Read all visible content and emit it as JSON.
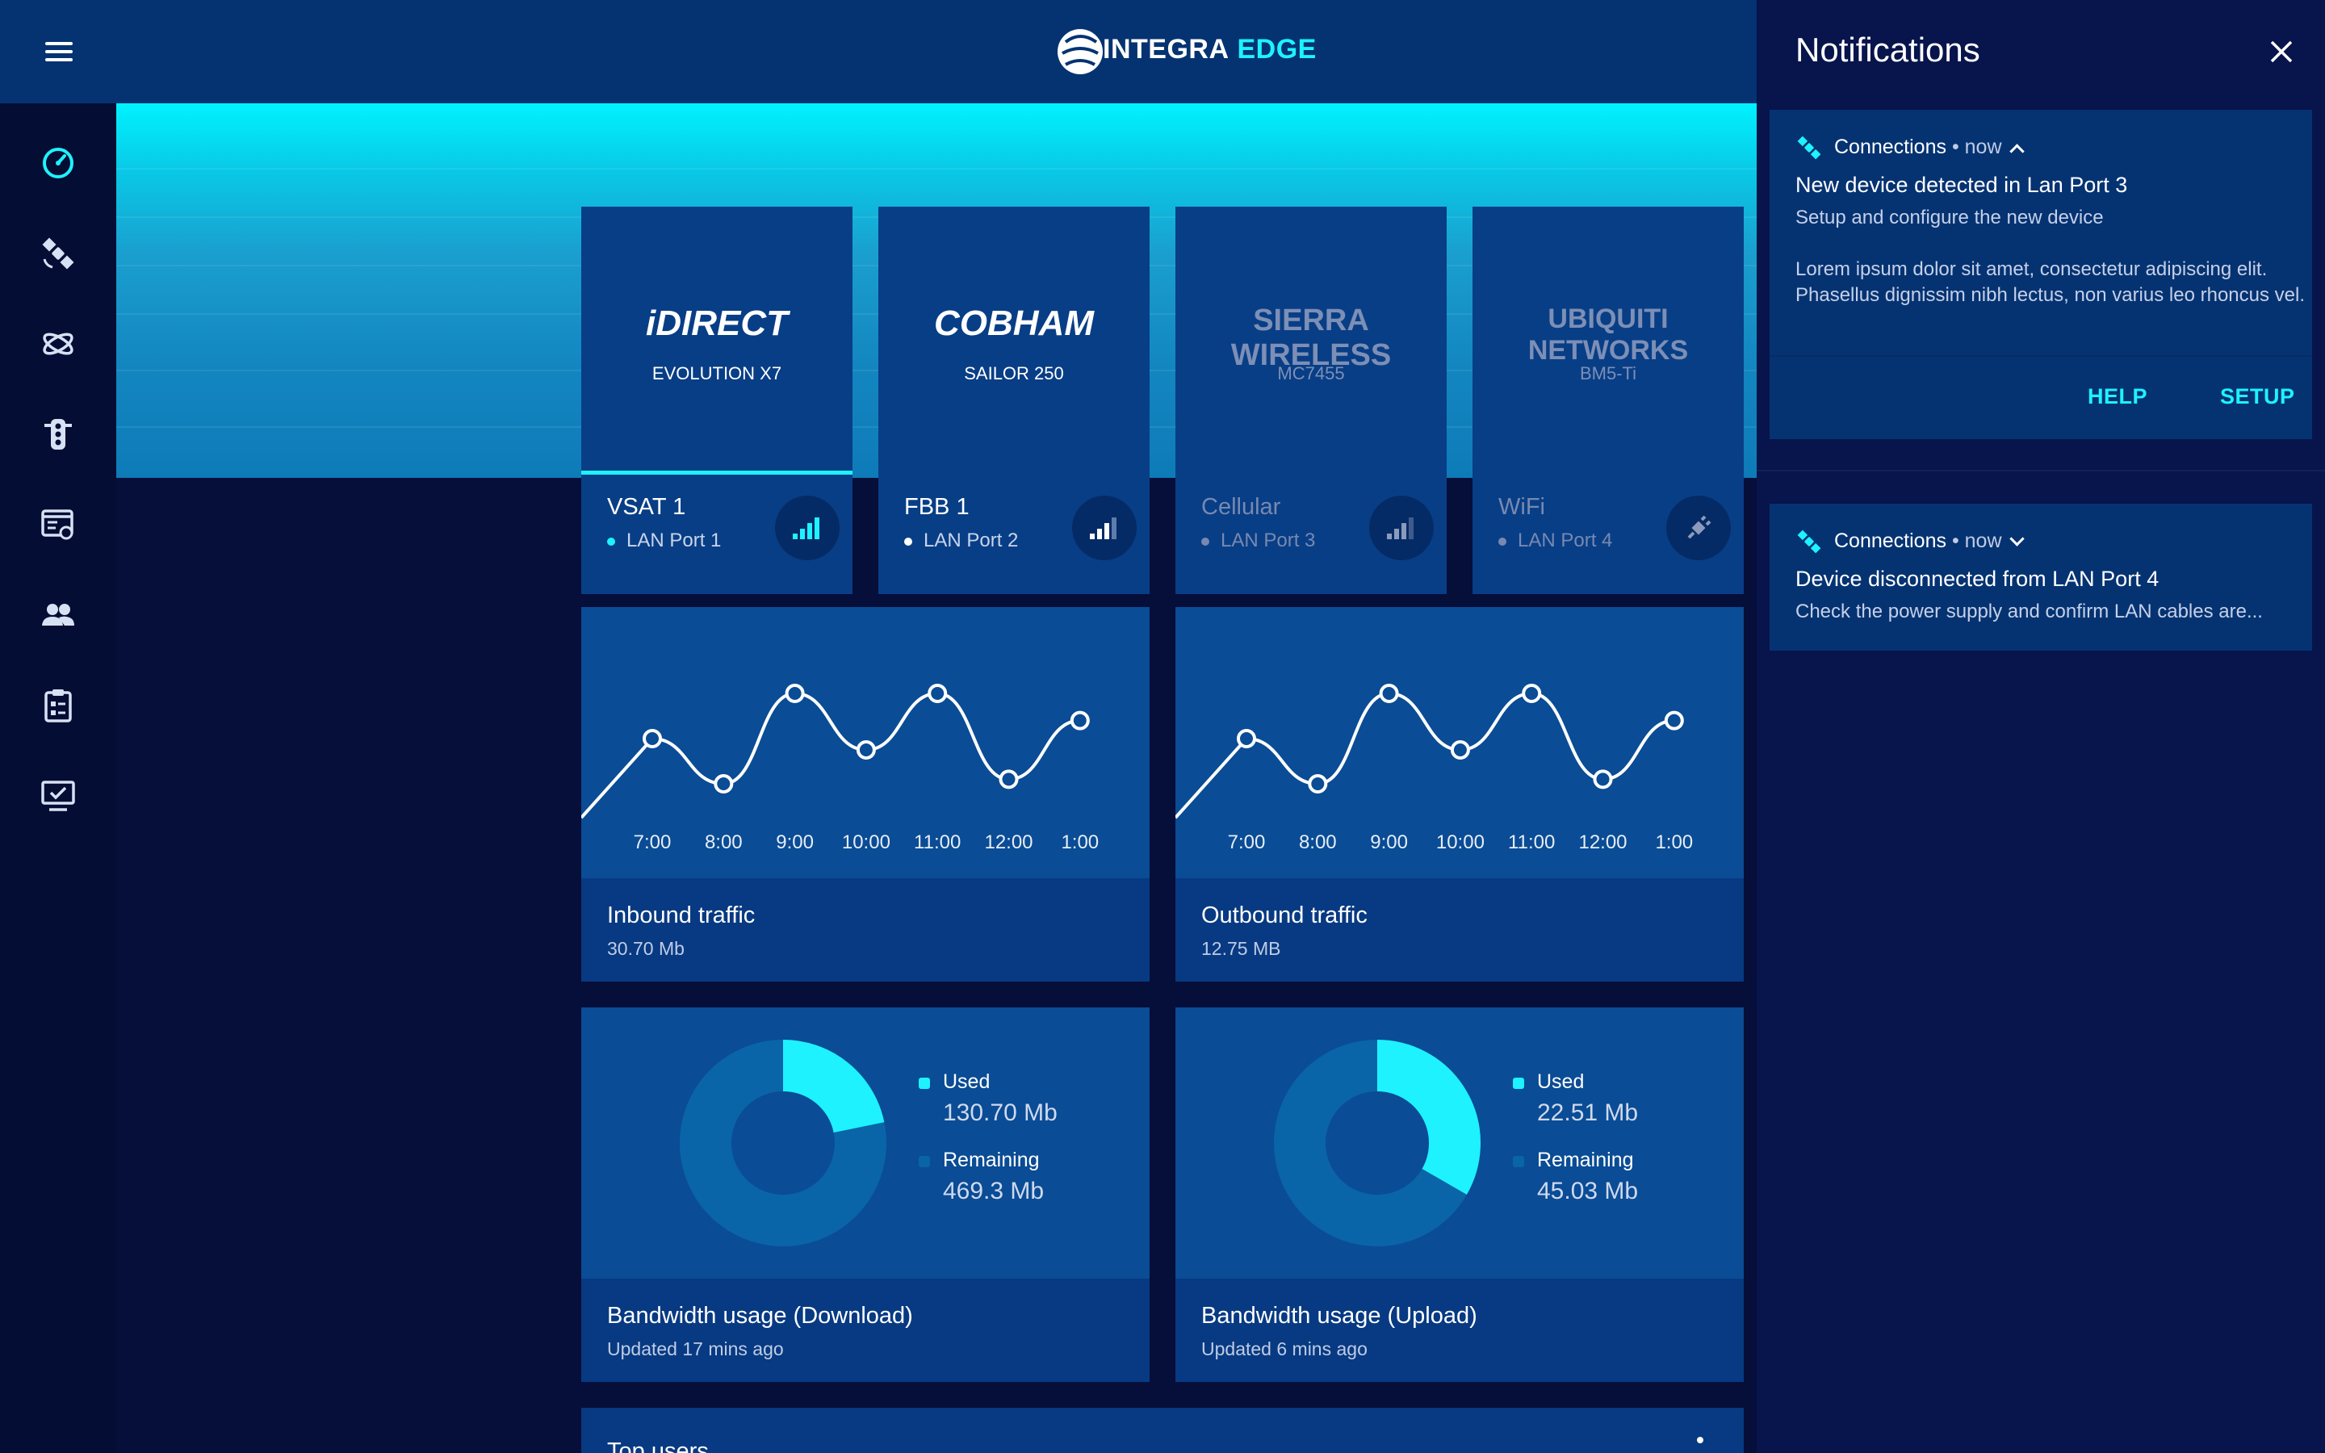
{
  "app": {
    "logo_part1": "INTEGRA",
    "logo_part2": "EDGE"
  },
  "sidebar": {
    "items": [
      {
        "icon": "dashboard-gauge-icon",
        "active": true
      },
      {
        "icon": "satellite-icon"
      },
      {
        "icon": "orbit-icon"
      },
      {
        "icon": "traffic-light-icon"
      },
      {
        "icon": "settings-list-icon"
      },
      {
        "icon": "users-icon"
      },
      {
        "icon": "clipboard-icon"
      },
      {
        "icon": "monitor-check-icon"
      }
    ]
  },
  "connections": [
    {
      "brand": "iDIRECT",
      "model": "EVOLUTION X7",
      "name": "VSAT 1",
      "port": "LAN Port 1",
      "signal_bars": 4,
      "status": "active",
      "selected": true
    },
    {
      "brand": "COBHAM",
      "model": "SAILOR 250",
      "name": "FBB 1",
      "port": "LAN Port 2",
      "signal_bars": 3,
      "status": "connected"
    },
    {
      "brand": "SIERRA WIRELESS",
      "model": "MC7455",
      "name": "Cellular",
      "port": "LAN Port 3",
      "signal_bars": 3,
      "status": "inactive"
    },
    {
      "brand": "UBIQUITI NETWORKS",
      "model": "BM5-Ti",
      "name": "WiFi",
      "port": "LAN Port 4",
      "status": "disconnected"
    }
  ],
  "traffic": {
    "inbound": {
      "title": "Inbound traffic",
      "value": "30.70 Mb"
    },
    "outbound": {
      "title": "Outbound traffic",
      "value": "12.75 MB"
    }
  },
  "chart_data": [
    {
      "type": "line",
      "x": [
        "7:00",
        "8:00",
        "9:00",
        "10:00",
        "11:00",
        "12:00",
        "1:00"
      ],
      "y": [
        4,
        2,
        6,
        3.5,
        6,
        2.2,
        4.8
      ]
    },
    {
      "type": "line",
      "x": [
        "7:00",
        "8:00",
        "9:00",
        "10:00",
        "11:00",
        "12:00",
        "1:00"
      ],
      "y": [
        4,
        2,
        6,
        3.5,
        6,
        2.2,
        4.8
      ]
    },
    {
      "type": "pie",
      "labels": [
        "Used",
        "Remaining"
      ],
      "values": [
        130.7,
        469.3
      ],
      "units": "Mb"
    },
    {
      "type": "pie",
      "labels": [
        "Used",
        "Remaining"
      ],
      "values": [
        22.51,
        45.03
      ],
      "units": "Mb"
    }
  ],
  "bandwidth": {
    "download": {
      "title": "Bandwidth usage (Download)",
      "updated": "Updated 17 mins ago",
      "used_label": "Used",
      "used": "130.70 Mb",
      "remaining_label": "Remaining",
      "remaining": "469.3 Mb"
    },
    "upload": {
      "title": "Bandwidth usage (Upload)",
      "updated": "Updated 6 mins ago",
      "used_label": "Used",
      "used": "22.51 Mb",
      "remaining_label": "Remaining",
      "remaining": "45.03 Mb"
    }
  },
  "top_users": {
    "title": "Top users"
  },
  "notifications": {
    "title": "Notifications",
    "items": [
      {
        "category": "Connections",
        "time": "• now",
        "title": "New device detected in Lan Port 3",
        "desc": "Setup and configure the new device",
        "body": "Lorem ipsum dolor sit amet, consectetur adipiscing elit. Phasellus dignissim nibh lectus, non varius leo rhoncus vel.",
        "help": "HELP",
        "setup": "SETUP"
      },
      {
        "category": "Connections",
        "time": "• now",
        "title": "Device disconnected from LAN Port 4",
        "desc": "Check the power supply and confirm LAN cables are..."
      }
    ]
  },
  "colors": {
    "accent": "#1ef2ff",
    "topbar": "#053372",
    "card": "#0a4c95",
    "background": "#060e3a"
  }
}
